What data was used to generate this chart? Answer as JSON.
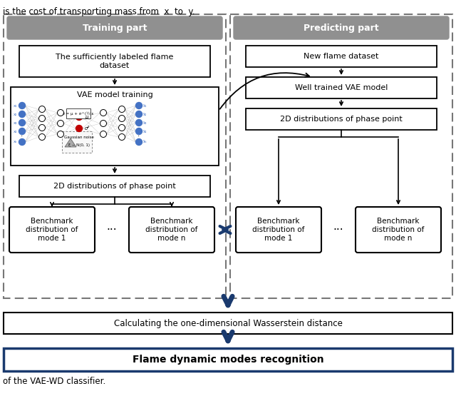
{
  "bg_color": "#ffffff",
  "gray_header_color": "#909090",
  "black_border": "#000000",
  "blue_border": "#1a3a6e",
  "blue_arrow": "#1a3a6e",
  "dashed_border": "#666666",
  "title_text_color": "#ffffff",
  "training_title": "Training part",
  "predicting_title": "Predicting part",
  "box1_train": "The sufficiently labeled flame\ndataset",
  "box2_train": "VAE model training",
  "box3_train": "2D distributions of phase point",
  "box_bench1_train": "Benchmark\ndistribution of\nmode 1",
  "box_bench2_train": "Benchmark\ndistribution of\nmode n",
  "box1_pred": "New flame dataset",
  "box2_pred": "Well trained VAE model",
  "box3_pred": "2D distributions of phase point",
  "box_bench1_pred": "Benchmark\ndistribution of\nmode 1",
  "box_bench2_pred": "Benchmark\ndistribution of\nmode n",
  "wasserstein_box": "Calculating the one-dimensional Wasserstein distance",
  "final_box": "Flame dynamic modes recognition",
  "dots": "···",
  "top_text": "is the cost of transporting mass from  x  to  y.",
  "bottom_text": "of the VAE-WD classifier."
}
